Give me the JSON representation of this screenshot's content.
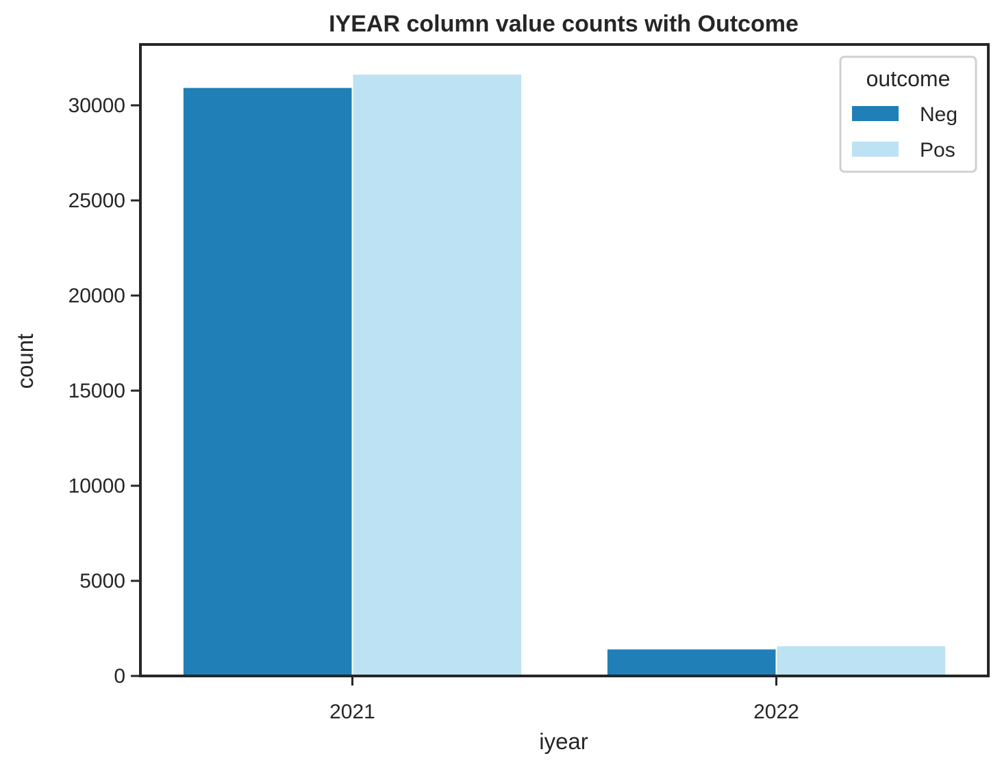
{
  "chart_data": {
    "type": "bar",
    "title": "IYEAR column value counts with Outcome",
    "xlabel": "iyear",
    "ylabel": "count",
    "categories": [
      "2021",
      "2022"
    ],
    "series": [
      {
        "name": "Neg",
        "color": "#1f7fb6",
        "values": [
          30950,
          1430
        ]
      },
      {
        "name": "Pos",
        "color": "#bde2f3",
        "values": [
          31650,
          1600
        ]
      }
    ],
    "ylim": [
      0,
      33200
    ],
    "yticks": [
      0,
      5000,
      10000,
      15000,
      20000,
      25000,
      30000
    ],
    "legend": {
      "title": "outcome",
      "placement": "top-right"
    },
    "grid": false
  }
}
